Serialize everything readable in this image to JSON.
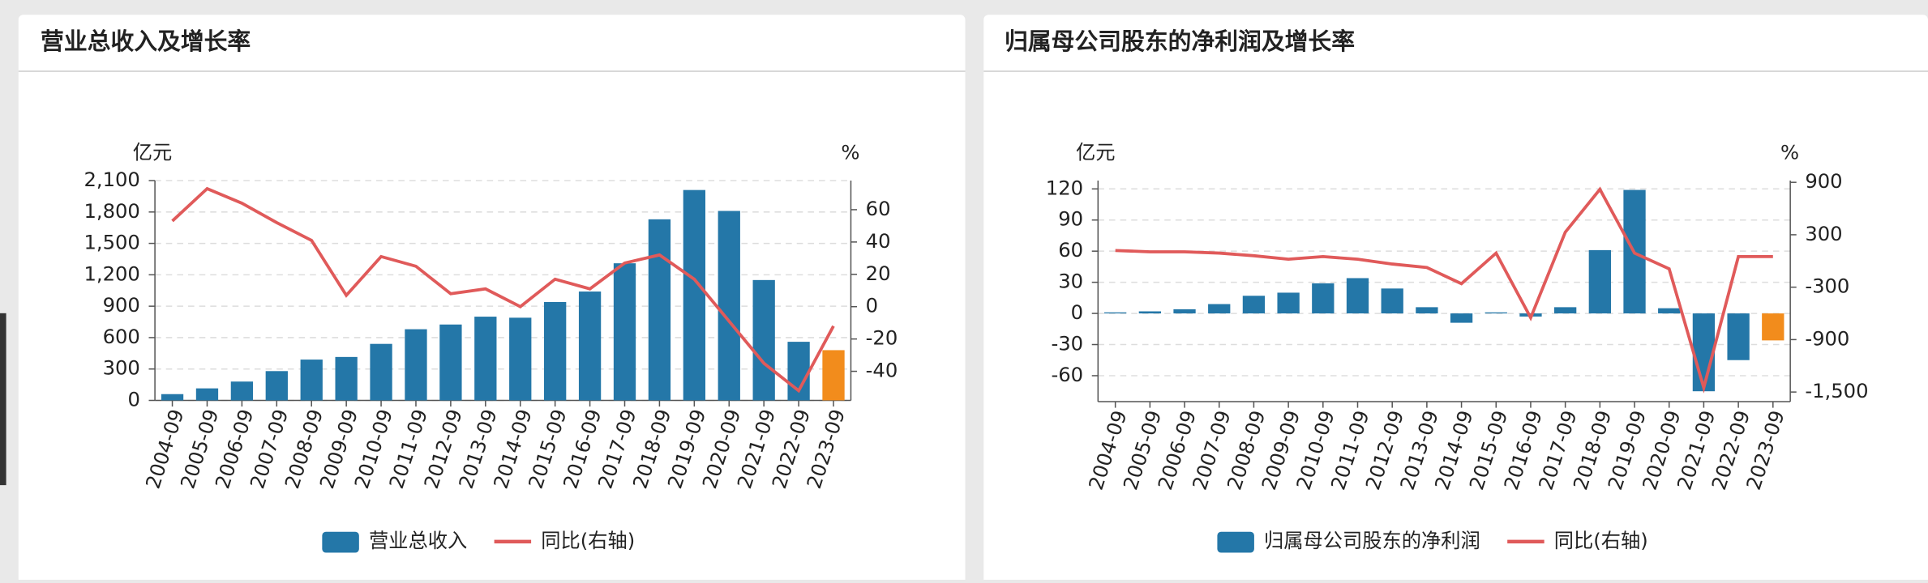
{
  "chart_data": [
    {
      "type": "bar-line",
      "title": "营业总收入及增长率",
      "y_label": "亿元",
      "y2_label": "%",
      "categories": [
        "2004-09",
        "2005-09",
        "2006-09",
        "2007-09",
        "2008-09",
        "2009-09",
        "2010-09",
        "2011-09",
        "2012-09",
        "2013-09",
        "2014-09",
        "2015-09",
        "2016-09",
        "2017-09",
        "2018-09",
        "2019-09",
        "2020-09",
        "2021-09",
        "2022-09",
        "2023-09"
      ],
      "series": [
        {
          "name": "营业总收入",
          "type": "bar",
          "color": "#2477a8",
          "colors": [
            "#2477a8",
            "#2477a8",
            "#2477a8",
            "#2477a8",
            "#2477a8",
            "#2477a8",
            "#2477a8",
            "#2477a8",
            "#2477a8",
            "#2477a8",
            "#2477a8",
            "#2477a8",
            "#2477a8",
            "#2477a8",
            "#2477a8",
            "#2477a8",
            "#2477a8",
            "#2477a8",
            "#2477a8",
            "#f28c1c"
          ],
          "values": [
            60,
            115,
            180,
            280,
            390,
            415,
            540,
            680,
            725,
            800,
            790,
            940,
            1040,
            1310,
            1730,
            2010,
            1810,
            1150,
            560,
            480
          ]
        },
        {
          "name": "同比(右轴)",
          "type": "line",
          "axis": "y2",
          "color": "#e05a5a",
          "values": [
            53,
            73,
            64,
            52,
            41,
            7,
            31,
            25,
            8,
            11,
            0,
            17,
            11,
            27,
            32,
            17,
            -9,
            -35,
            -52,
            -12
          ]
        }
      ],
      "ylim": [
        0,
        2100
      ],
      "yticks": [
        0,
        300,
        600,
        900,
        {
          "value": 1200,
          "label": "1,200"
        },
        {
          "value": 1500,
          "label": "1,500"
        },
        {
          "value": 1800,
          "label": "1,800"
        },
        {
          "value": 2100,
          "label": "2,100"
        }
      ],
      "y2lim": [
        -58,
        78
      ],
      "y2ticks": [
        -40,
        -20,
        0,
        20,
        40,
        60
      ],
      "grid": true
    },
    {
      "type": "bar-line",
      "title": "归属母公司股东的净利润及增长率",
      "y_label": "亿元",
      "y2_label": "%",
      "categories": [
        "2004-09",
        "2005-09",
        "2006-09",
        "2007-09",
        "2008-09",
        "2009-09",
        "2010-09",
        "2011-09",
        "2012-09",
        "2013-09",
        "2014-09",
        "2015-09",
        "2016-09",
        "2017-09",
        "2018-09",
        "2019-09",
        "2020-09",
        "2021-09",
        "2022-09",
        "2023-09"
      ],
      "series": [
        {
          "name": "归属母公司股东的净利润",
          "type": "bar",
          "color": "#2477a8",
          "colors": [
            "#2477a8",
            "#2477a8",
            "#2477a8",
            "#2477a8",
            "#2477a8",
            "#2477a8",
            "#2477a8",
            "#2477a8",
            "#2477a8",
            "#2477a8",
            "#2477a8",
            "#2477a8",
            "#2477a8",
            "#2477a8",
            "#2477a8",
            "#2477a8",
            "#2477a8",
            "#2477a8",
            "#2477a8",
            "#f28c1c"
          ],
          "values": [
            1,
            2,
            4,
            9,
            17,
            20,
            29,
            34,
            24,
            6,
            -9,
            1,
            -3,
            6,
            61,
            119,
            5,
            -75,
            -45,
            -26
          ]
        },
        {
          "name": "同比(右轴)",
          "type": "line",
          "axis": "y2",
          "color": "#e05a5a",
          "values": [
            120,
            105,
            105,
            90,
            60,
            20,
            50,
            20,
            -35,
            -75,
            -260,
            90,
            -650,
            330,
            820,
            90,
            -90,
            -1450,
            50,
            50
          ]
        }
      ],
      "ylim": [
        -85,
        128
      ],
      "yticks": [
        -60,
        -30,
        0,
        30,
        60,
        90,
        120
      ],
      "y2lim": [
        -1610,
        920
      ],
      "y2ticks": [
        {
          "value": -1500,
          "label": "-1,500"
        },
        -900,
        -300,
        300,
        900
      ],
      "grid": true
    }
  ]
}
